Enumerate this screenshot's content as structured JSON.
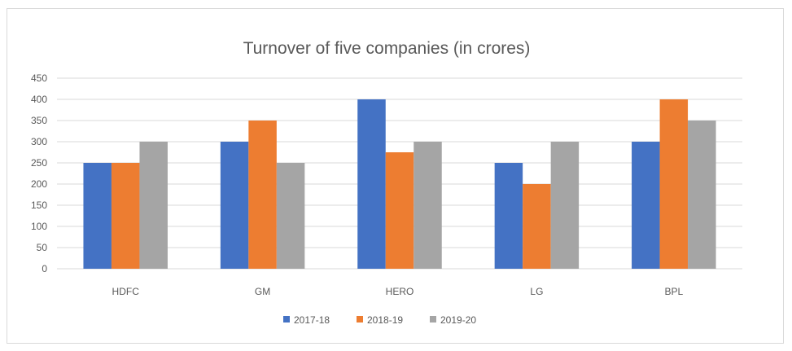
{
  "chart_data": {
    "type": "bar",
    "title": "Turnover of five companies (in crores)",
    "categories": [
      "HDFC",
      "GM",
      "HERO",
      "LG",
      "BPL"
    ],
    "series": [
      {
        "name": "2017-18",
        "color": "#4472C4",
        "values": [
          250,
          300,
          400,
          250,
          300
        ]
      },
      {
        "name": "2018-19",
        "color": "#ED7D31",
        "values": [
          250,
          350,
          275,
          200,
          400
        ]
      },
      {
        "name": "2019-20",
        "color": "#A5A5A5",
        "values": [
          300,
          250,
          300,
          300,
          350
        ]
      }
    ],
    "yticks": [
      "0",
      "50",
      "100",
      "150",
      "200",
      "250",
      "300",
      "350",
      "400",
      "450"
    ],
    "ylim": [
      0,
      450
    ],
    "xlabel": "",
    "ylabel": "",
    "grid": true,
    "legend": "bottom"
  }
}
